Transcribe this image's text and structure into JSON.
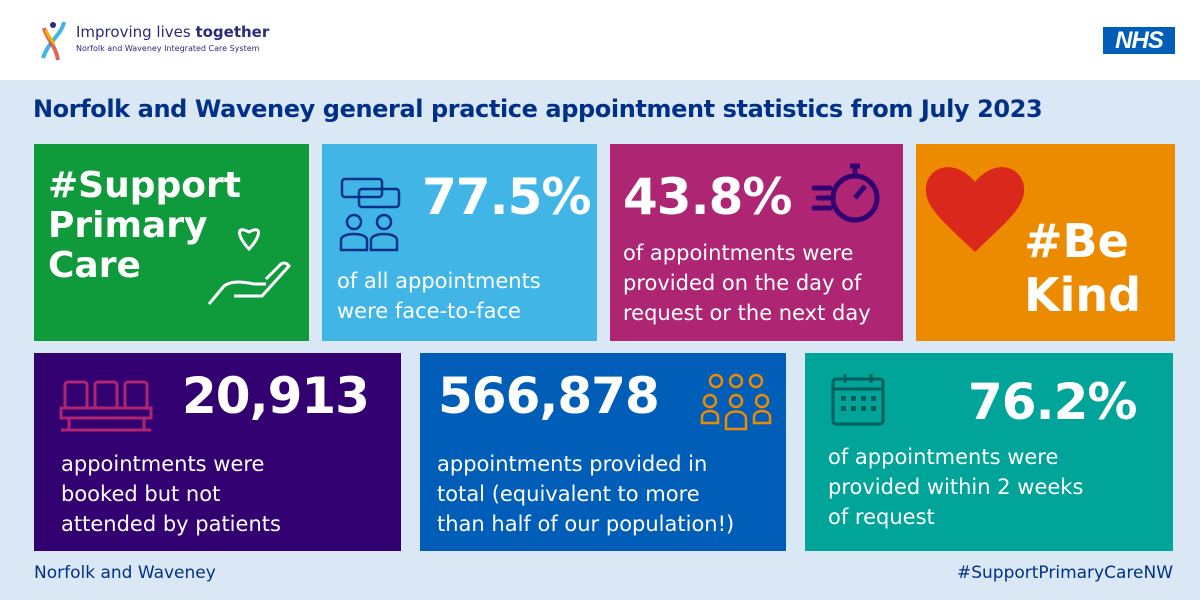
{
  "header": {
    "logo_line1_a": "Improving lives ",
    "logo_line1_b": "together",
    "logo_line2": "Norfolk and Waveney Integrated Care System",
    "nhs_logo": "NHS"
  },
  "title": "Norfolk and Waveney general practice appointment statistics from July 2023",
  "tiles": [
    {
      "text": [
        "#Support",
        "Primary",
        "Care"
      ],
      "color": "#0f9a3c",
      "icon": "hand-heart-icon"
    },
    {
      "value": "77.5%",
      "desc": [
        "of all appointments",
        "were face-to-face"
      ],
      "color": "#41b6e6",
      "icon": "people-speech-icon"
    },
    {
      "value": "43.8%",
      "desc": [
        "of appointments were",
        "provided on the day of",
        "request or the next day"
      ],
      "color": "#ae2573",
      "icon": "stopwatch-icon"
    },
    {
      "text": [
        "#Be",
        "Kind"
      ],
      "color": "#ed8b00",
      "icon": "heart-icon"
    },
    {
      "value": "20,913",
      "desc": [
        "appointments were",
        "booked but not",
        "attended by patients"
      ],
      "color": "#330072",
      "icon": "empty-seats-icon"
    },
    {
      "value": "566,878",
      "desc": [
        "appointments provided in",
        "total (equivalent to more",
        "than half of our population!)"
      ],
      "color": "#005eb8",
      "icon": "group-icon"
    },
    {
      "value": "76.2%",
      "desc": [
        "of appointments were",
        "provided within 2 weeks",
        "of request"
      ],
      "color": "#00a499",
      "icon": "calendar-icon"
    }
  ],
  "footer": {
    "left": "Norfolk and Waveney",
    "right": "#SupportPrimaryCareNW"
  }
}
